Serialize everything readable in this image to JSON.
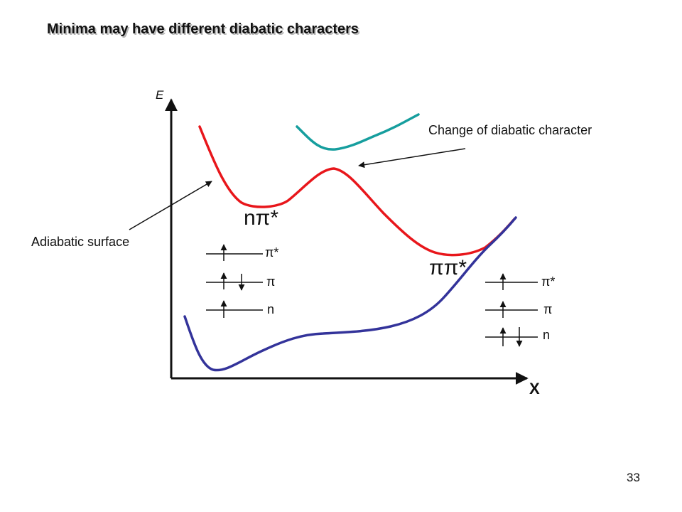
{
  "slide": {
    "title": "Minima may have different diabatic characters",
    "page_number": "33"
  },
  "axes": {
    "y_label": "E",
    "x_label": "X"
  },
  "annotations": {
    "change": "Change of diabatic character",
    "adiabatic": "Adiabatic surface"
  },
  "states": {
    "npi": "nπ*",
    "pipi": "ππ*"
  },
  "orbitals_left": {
    "pistar": "π*",
    "pi": "π",
    "n": "n"
  },
  "orbitals_right": {
    "pistar": "π*",
    "pi": "π",
    "n": "n"
  },
  "colors": {
    "red_curve": "#e8161b",
    "blue_curve": "#33339a",
    "teal_curve": "#169e9e",
    "axis": "#111111"
  }
}
